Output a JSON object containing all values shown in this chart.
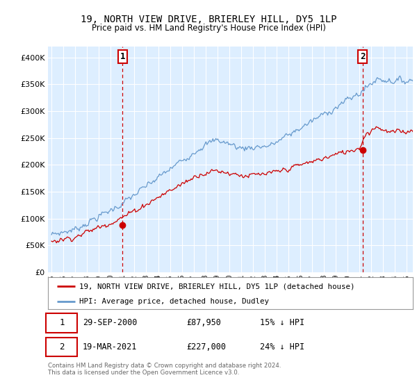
{
  "title": "19, NORTH VIEW DRIVE, BRIERLEY HILL, DY5 1LP",
  "subtitle": "Price paid vs. HM Land Registry's House Price Index (HPI)",
  "legend_label_red": "19, NORTH VIEW DRIVE, BRIERLEY HILL, DY5 1LP (detached house)",
  "legend_label_blue": "HPI: Average price, detached house, Dudley",
  "footer": "Contains HM Land Registry data © Crown copyright and database right 2024.\nThis data is licensed under the Open Government Licence v3.0.",
  "marker1_date": "29-SEP-2000",
  "marker1_price": "£87,950",
  "marker1_hpi": "15% ↓ HPI",
  "marker2_date": "19-MAR-2021",
  "marker2_price": "£227,000",
  "marker2_hpi": "24% ↓ HPI",
  "red_color": "#cc0000",
  "blue_color": "#6699cc",
  "bg_color": "#ddeeff",
  "marker1_x": 2001.0,
  "marker1_y": 87950,
  "marker2_x": 2021.25,
  "marker2_y": 227000,
  "ylim": [
    0,
    420000
  ],
  "xlim": [
    1994.7,
    2025.5
  ],
  "yticks": [
    0,
    50000,
    100000,
    150000,
    200000,
    250000,
    300000,
    350000,
    400000
  ]
}
